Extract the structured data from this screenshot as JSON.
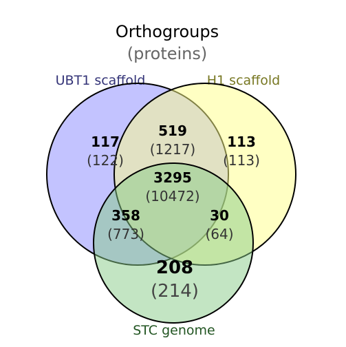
{
  "title": "Orthogroups",
  "subtitle": "(proteins)",
  "sets": {
    "ubt1": {
      "label": "UBT1 scaffold",
      "fill": "#8888ff",
      "label_color": "#333377"
    },
    "h1": {
      "label": "H1 scaffold",
      "fill": "#ffff88",
      "label_color": "#777722"
    },
    "stc": {
      "label": "STC genome",
      "fill": "#88cc88",
      "label_color": "#225522"
    }
  },
  "regions": {
    "ubt1_only": {
      "orthogroups": "117",
      "proteins": "(122)"
    },
    "ubt1_h1": {
      "orthogroups": "519",
      "proteins": "(1217)"
    },
    "h1_only": {
      "orthogroups": "113",
      "proteins": "(113)"
    },
    "all_three": {
      "orthogroups": "3295",
      "proteins": "(10472)"
    },
    "ubt1_stc": {
      "orthogroups": "358",
      "proteins": "(773)"
    },
    "h1_stc": {
      "orthogroups": "30",
      "proteins": "(64)"
    },
    "stc_only": {
      "orthogroups": "208",
      "proteins": "(214)"
    }
  }
}
